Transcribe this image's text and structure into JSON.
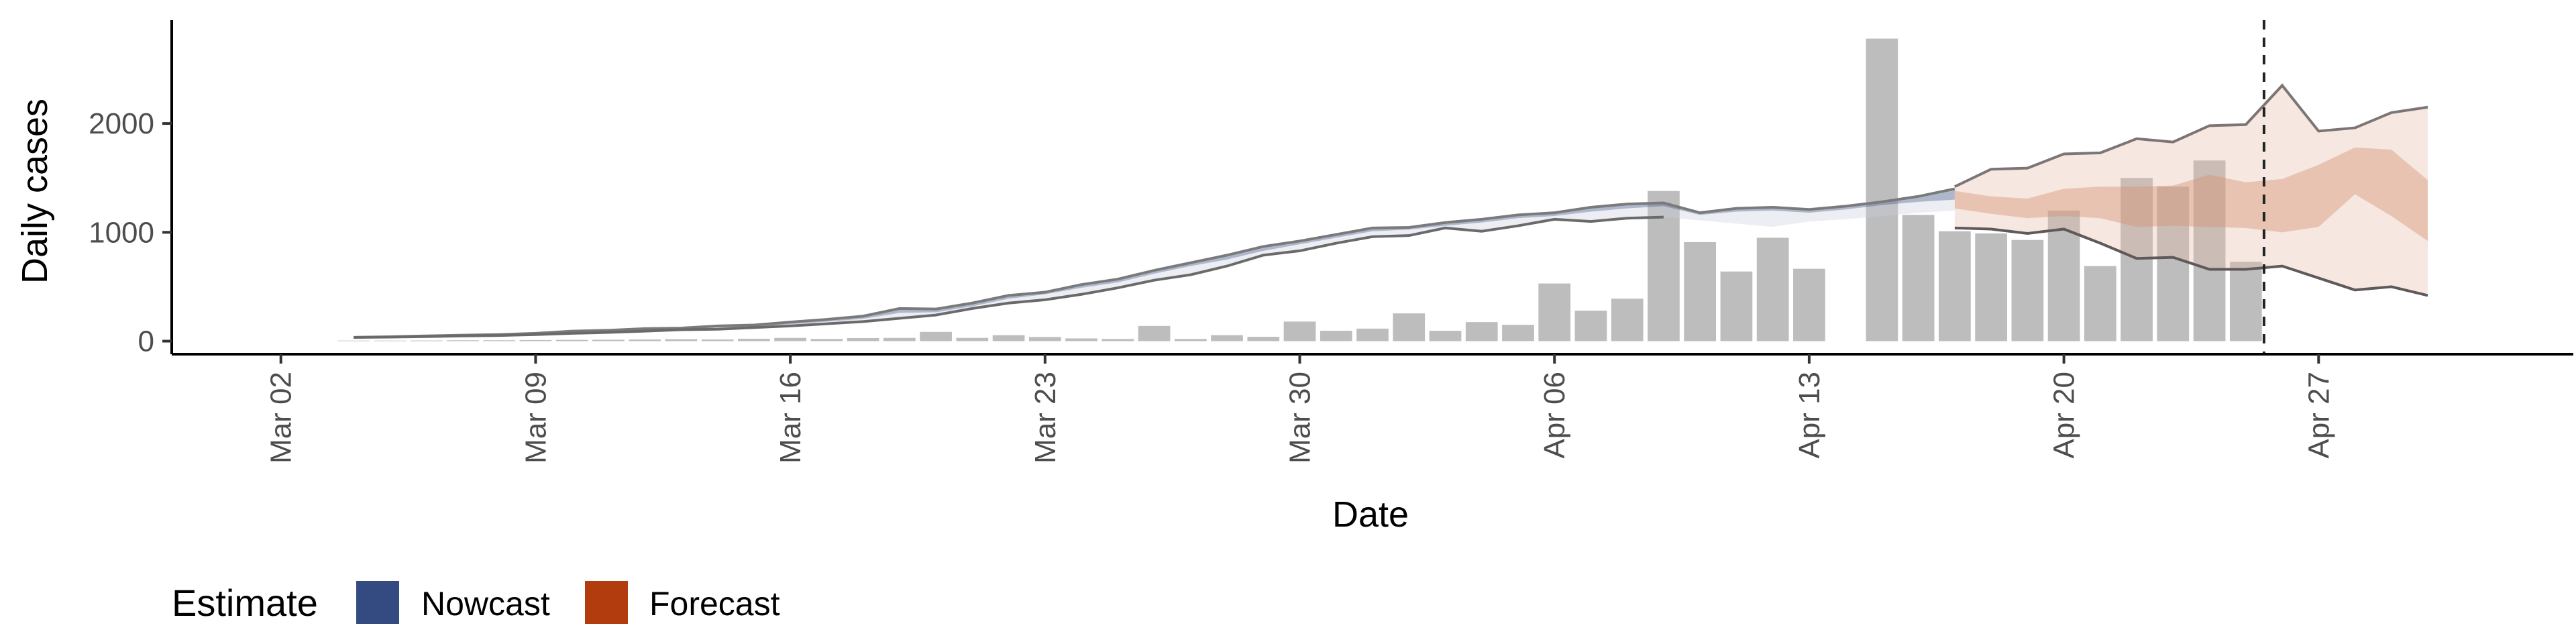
{
  "chart_data": {
    "type": "bar",
    "xlabel": "Date",
    "ylabel": "Daily cases",
    "x_ticks": [
      "Mar 02",
      "Mar 09",
      "Mar 16",
      "Mar 23",
      "Mar 30",
      "Apr 06",
      "Apr 13",
      "Apr 20",
      "Apr 27"
    ],
    "y_ticks": [
      0,
      1000,
      2000
    ],
    "xlim": [
      "2020-02-28",
      "2020-05-04"
    ],
    "ylim": [
      -120,
      2950
    ],
    "grid": false,
    "estimate_date": "2020-04-25",
    "bars": {
      "name": "Daily cases",
      "color": "#bdbdbd",
      "dates": [
        "2020-03-04",
        "2020-03-05",
        "2020-03-06",
        "2020-03-07",
        "2020-03-08",
        "2020-03-09",
        "2020-03-10",
        "2020-03-11",
        "2020-03-12",
        "2020-03-13",
        "2020-03-14",
        "2020-03-15",
        "2020-03-16",
        "2020-03-17",
        "2020-03-18",
        "2020-03-19",
        "2020-03-20",
        "2020-03-21",
        "2020-03-22",
        "2020-03-23",
        "2020-03-24",
        "2020-03-25",
        "2020-03-26",
        "2020-03-27",
        "2020-03-28",
        "2020-03-29",
        "2020-03-30",
        "2020-03-31",
        "2020-04-01",
        "2020-04-02",
        "2020-04-03",
        "2020-04-04",
        "2020-04-05",
        "2020-04-06",
        "2020-04-07",
        "2020-04-08",
        "2020-04-09",
        "2020-04-10",
        "2020-04-11",
        "2020-04-12",
        "2020-04-13",
        "2020-04-14",
        "2020-04-15",
        "2020-04-16",
        "2020-04-17",
        "2020-04-18",
        "2020-04-19",
        "2020-04-20",
        "2020-04-21",
        "2020-04-22",
        "2020-04-23",
        "2020-04-24",
        "2020-04-25"
      ],
      "values": [
        5,
        5,
        6,
        8,
        8,
        10,
        12,
        13,
        15,
        18,
        15,
        22,
        30,
        20,
        28,
        30,
        85,
        30,
        55,
        38,
        25,
        20,
        140,
        20,
        55,
        40,
        180,
        95,
        115,
        255,
        95,
        175,
        150,
        530,
        280,
        390,
        1380,
        910,
        640,
        950,
        665,
        0,
        2780,
        1160,
        1010,
        990,
        930,
        1200,
        690,
        1500,
        1420,
        1660,
        730
      ]
    },
    "nowcast": {
      "name": "Nowcast",
      "color": "#3c5488",
      "dates": [
        "2020-03-04",
        "2020-03-05",
        "2020-03-06",
        "2020-03-07",
        "2020-03-08",
        "2020-03-09",
        "2020-03-10",
        "2020-03-11",
        "2020-03-12",
        "2020-03-13",
        "2020-03-14",
        "2020-03-15",
        "2020-03-16",
        "2020-03-17",
        "2020-03-18",
        "2020-03-19",
        "2020-03-20",
        "2020-03-21",
        "2020-03-22",
        "2020-03-23",
        "2020-03-24",
        "2020-03-25",
        "2020-03-26",
        "2020-03-27",
        "2020-03-28",
        "2020-03-29",
        "2020-03-30",
        "2020-03-31",
        "2020-04-01",
        "2020-04-02",
        "2020-04-03",
        "2020-04-04",
        "2020-04-05",
        "2020-04-06",
        "2020-04-07",
        "2020-04-08",
        "2020-04-09",
        "2020-04-10",
        "2020-04-11",
        "2020-04-12",
        "2020-04-13",
        "2020-04-14",
        "2020-04-15",
        "2020-04-16",
        "2020-04-17"
      ],
      "upper": [
        35,
        40,
        48,
        55,
        60,
        72,
        92,
        100,
        115,
        120,
        140,
        148,
        175,
        200,
        230,
        300,
        295,
        350,
        420,
        450,
        520,
        570,
        650,
        720,
        790,
        870,
        920,
        980,
        1040,
        1045,
        1090,
        1120,
        1160,
        1180,
        1230,
        1260,
        1270,
        1180,
        1220,
        1230,
        1210,
        1240,
        1280,
        1330,
        1400
      ],
      "median": [
        35,
        39,
        46,
        53,
        58,
        68,
        86,
        94,
        108,
        115,
        132,
        142,
        165,
        190,
        218,
        280,
        280,
        335,
        405,
        440,
        505,
        555,
        635,
        705,
        770,
        850,
        905,
        965,
        1025,
        1035,
        1075,
        1105,
        1145,
        1165,
        1210,
        1240,
        1255,
        1170,
        1205,
        1215,
        1195,
        1230,
        1270,
        1310,
        1350
      ],
      "lower": [
        34,
        38,
        44,
        51,
        56,
        64,
        80,
        88,
        100,
        110,
        125,
        136,
        155,
        180,
        205,
        260,
        265,
        320,
        390,
        430,
        490,
        540,
        620,
        690,
        750,
        830,
        890,
        950,
        1010,
        1025,
        1060,
        1090,
        1130,
        1150,
        1190,
        1220,
        1240,
        1160,
        1190,
        1200,
        1180,
        1210,
        1250,
        1280,
        1300
      ],
      "outer_upper": [
        35,
        40,
        48,
        55,
        60,
        72,
        92,
        100,
        115,
        120,
        140,
        148,
        175,
        200,
        230,
        300,
        295,
        350,
        420,
        450,
        520,
        570,
        650,
        720,
        790,
        870,
        920,
        980,
        1040,
        1045,
        1090,
        1120,
        1160,
        1180,
        1230,
        1260,
        1270,
        1180,
        1220,
        1230,
        1210,
        1240,
        1280,
        1330,
        1400
      ],
      "outer_lower": [
        34,
        37,
        42,
        48,
        52,
        60,
        72,
        80,
        92,
        105,
        110,
        125,
        140,
        160,
        180,
        210,
        240,
        300,
        350,
        380,
        430,
        490,
        560,
        610,
        690,
        790,
        830,
        900,
        960,
        970,
        1040,
        1010,
        1060,
        1120,
        1100,
        1130,
        1140,
        1110,
        1080,
        1050,
        1100,
        1120,
        1150,
        1180,
        1200
      ]
    },
    "forecast": {
      "name": "Forecast",
      "color": "#b5441a",
      "dates": [
        "2020-04-17",
        "2020-04-18",
        "2020-04-19",
        "2020-04-20",
        "2020-04-21",
        "2020-04-22",
        "2020-04-23",
        "2020-04-24",
        "2020-04-25",
        "2020-04-26",
        "2020-04-27",
        "2020-04-28",
        "2020-04-29",
        "2020-04-30"
      ],
      "outer_upper": [
        1420,
        1580,
        1590,
        1720,
        1730,
        1860,
        1830,
        1980,
        1990,
        2350,
        1930,
        1960,
        2100,
        2150
      ],
      "outer_lower": [
        1040,
        1030,
        990,
        1030,
        900,
        760,
        770,
        660,
        660,
        690,
        580,
        470,
        500,
        420
      ],
      "inner_upper": [
        1380,
        1330,
        1310,
        1400,
        1420,
        1420,
        1430,
        1530,
        1460,
        1490,
        1620,
        1780,
        1760,
        1480
      ],
      "inner_lower": [
        1220,
        1170,
        1130,
        1150,
        1130,
        1050,
        1060,
        1050,
        1040,
        1000,
        1050,
        1350,
        1150,
        920
      ]
    }
  },
  "legend": {
    "title": "Estimate",
    "items": [
      {
        "label": "Nowcast",
        "color": "#344b82"
      },
      {
        "label": "Forecast",
        "color": "#b23c0e"
      }
    ]
  }
}
